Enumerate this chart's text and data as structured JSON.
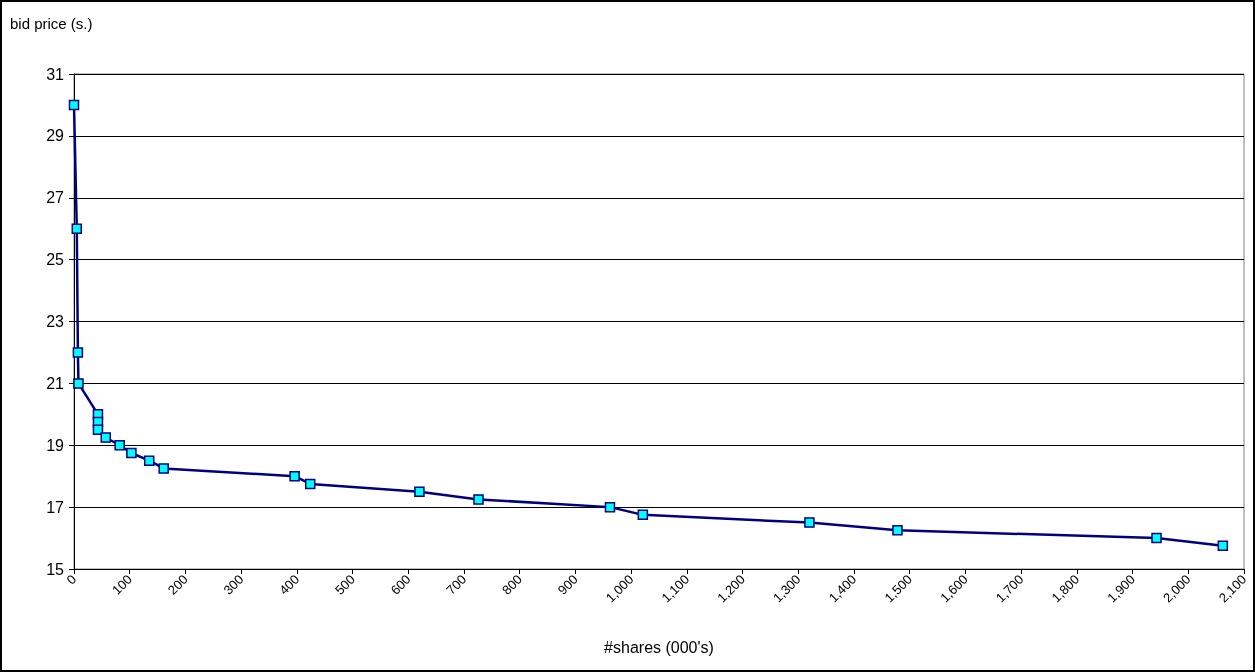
{
  "chart_data": {
    "type": "line",
    "xlabel": "#shares (000's)",
    "ylabel": "bid price (s.)",
    "x": [
      0,
      5,
      7,
      8,
      43,
      43,
      43,
      57,
      82,
      103,
      135,
      161,
      396,
      424,
      620,
      726,
      962,
      1021,
      1320,
      1478,
      1943,
      2062
    ],
    "series": [
      {
        "color": "#000080",
        "values": [
          30,
          26,
          22,
          21,
          20,
          19.75,
          19.5,
          19.25,
          19,
          18.75,
          18.5,
          18.25,
          18,
          17.75,
          17.5,
          17.25,
          17,
          16.75,
          16.5,
          16.25,
          16,
          15.75
        ]
      }
    ],
    "xlim": [
      0,
      2100
    ],
    "xticks": [
      0,
      100,
      200,
      300,
      400,
      500,
      600,
      700,
      800,
      900,
      {
        "value": 1000,
        "label": "1,000"
      },
      {
        "value": 1100,
        "label": "1,100"
      },
      {
        "value": 1200,
        "label": "1,200"
      },
      {
        "value": 1300,
        "label": "1,300"
      },
      {
        "value": 1400,
        "label": "1,400"
      },
      {
        "value": 1500,
        "label": "1,500"
      },
      {
        "value": 1600,
        "label": "1,600"
      },
      {
        "value": 1700,
        "label": "1,700"
      },
      {
        "value": 1800,
        "label": "1,800"
      },
      {
        "value": 1900,
        "label": "1,900"
      },
      {
        "value": 2000,
        "label": "2,000"
      },
      {
        "value": 2100,
        "label": "2,100"
      }
    ],
    "ylim": [
      15,
      31
    ],
    "yticks": [
      15,
      17,
      19,
      21,
      23,
      25,
      27,
      29,
      31
    ],
    "grid": "y",
    "marker": "square",
    "line_style": "solid"
  }
}
